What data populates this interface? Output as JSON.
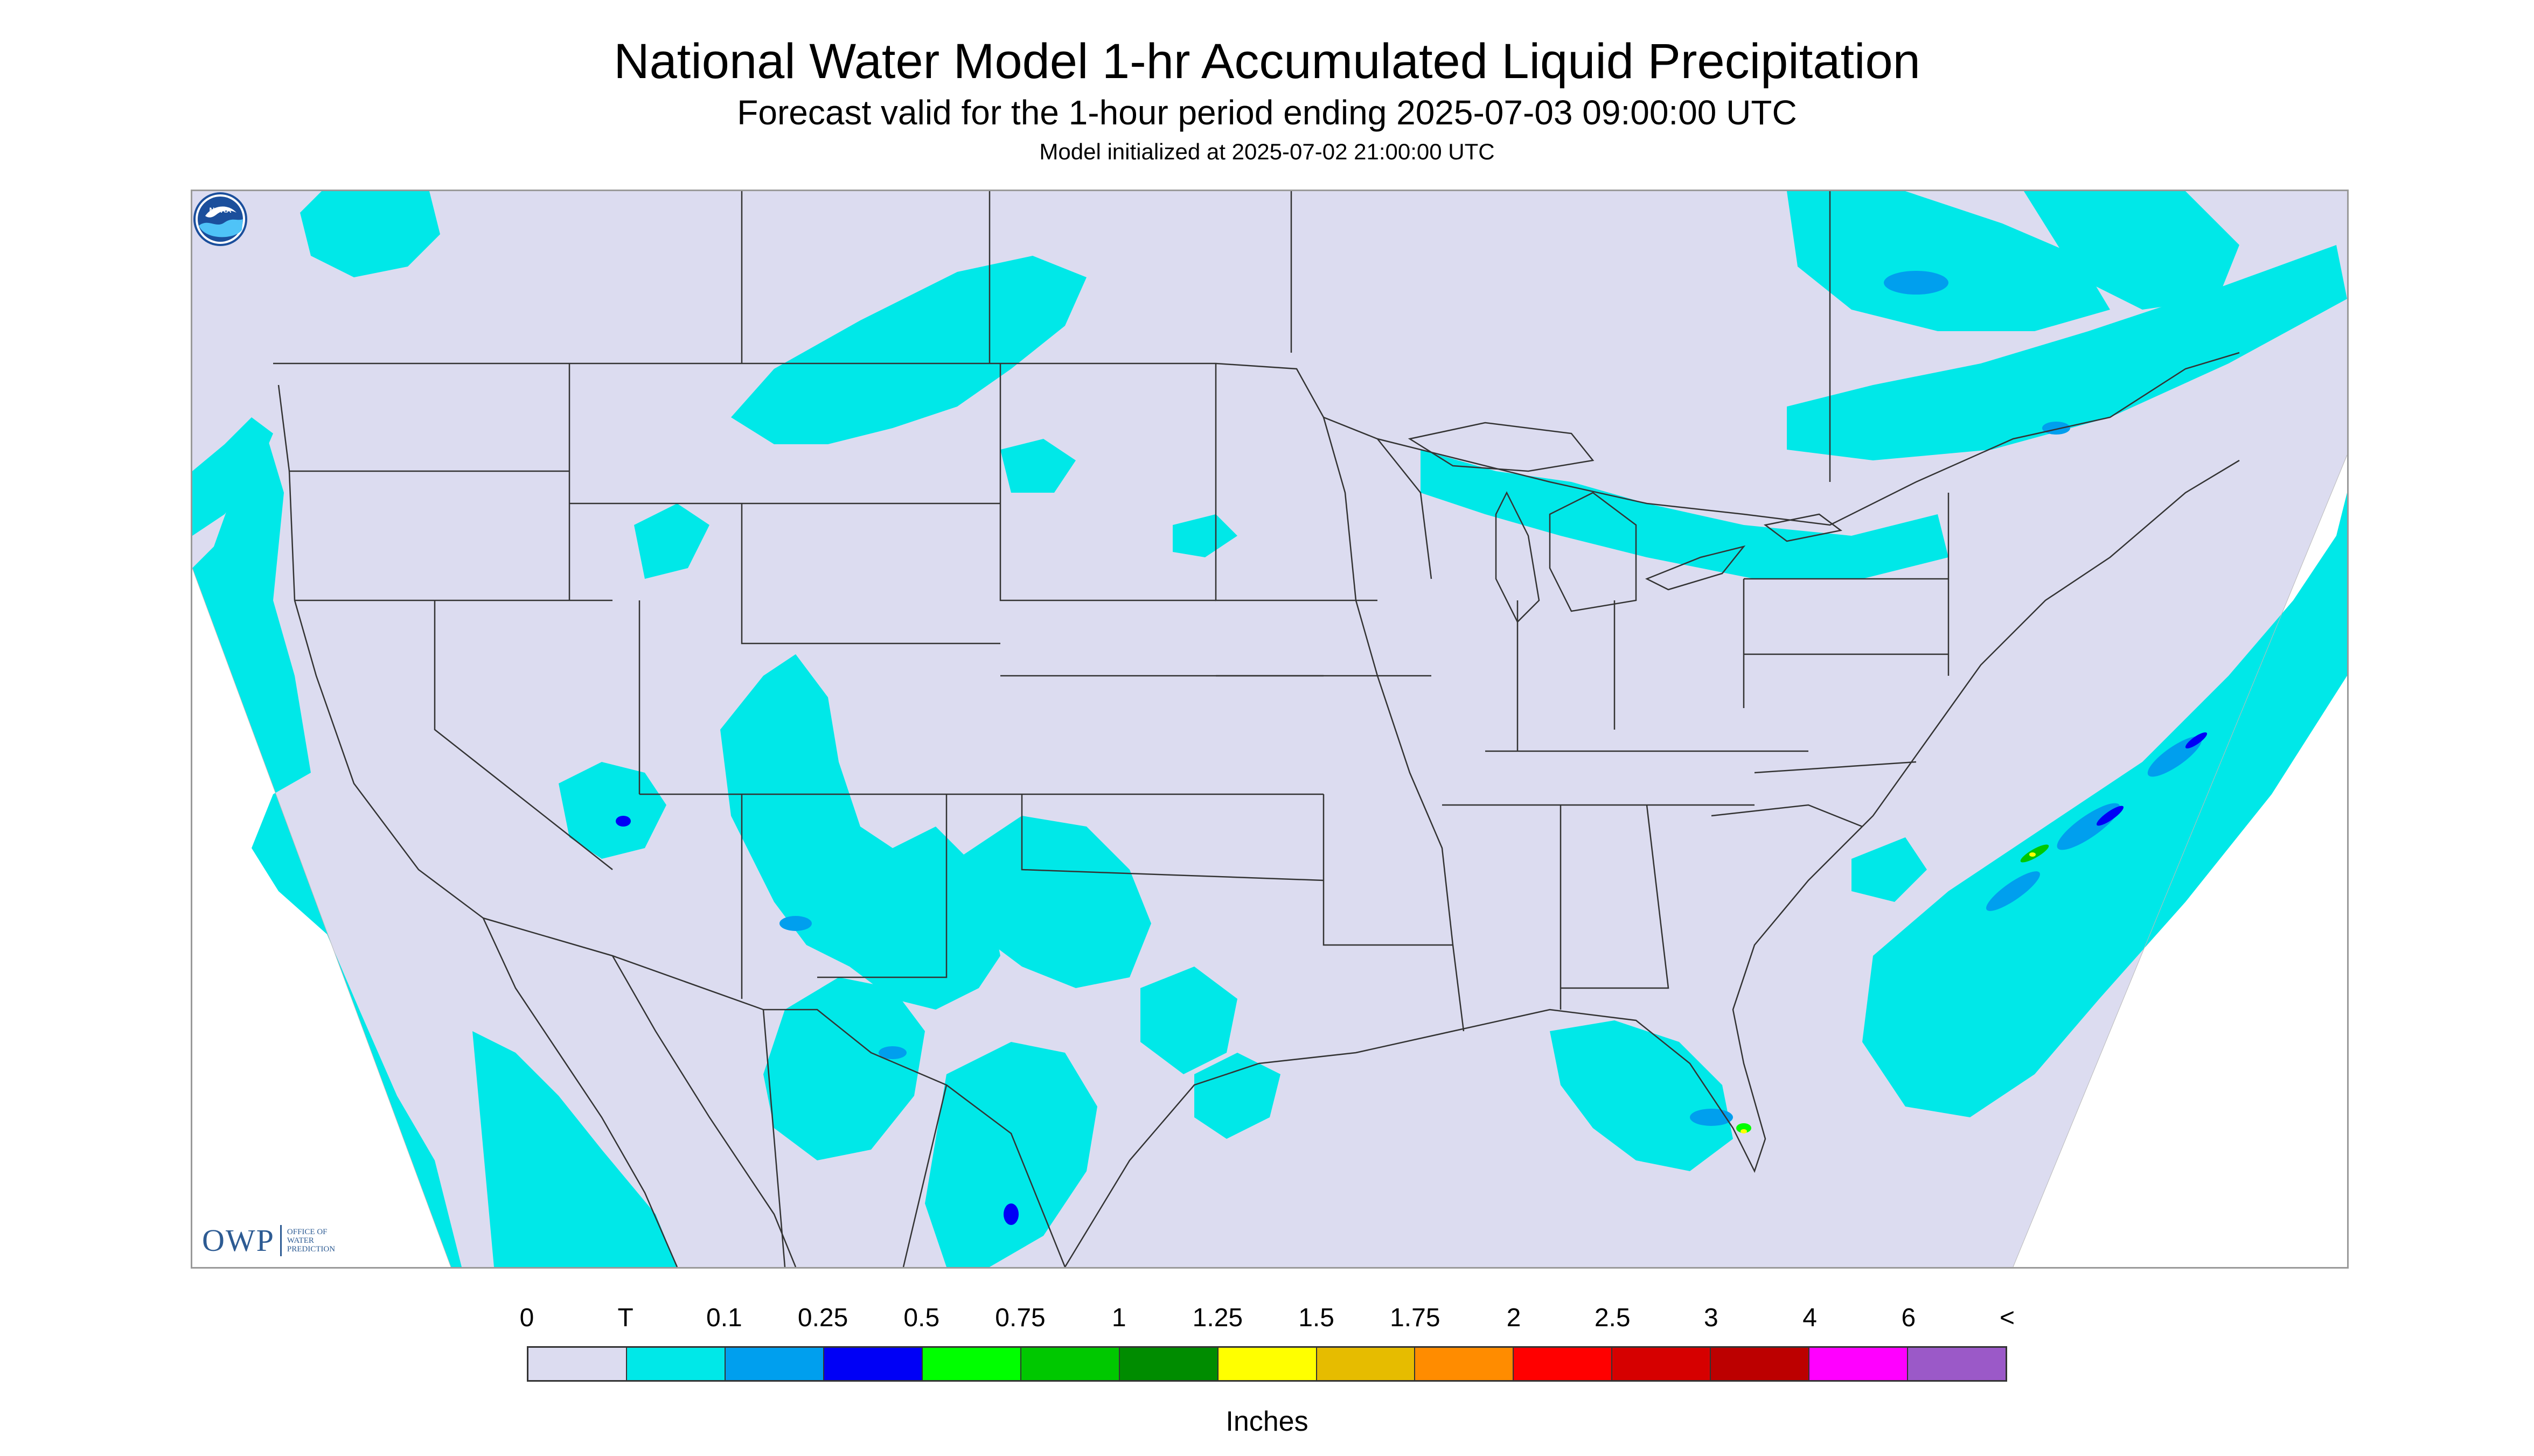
{
  "title": "National Water Model 1-hr Accumulated Liquid Precipitation",
  "subtitle": "Forecast valid for the 1-hour period ending 2025-07-03 09:00:00 UTC",
  "init_line": "Model initialized at 2025-07-02 21:00:00 UTC",
  "logos": {
    "owp_letters": "OWP",
    "owp_text": "OFFICE OF WATER PREDICTION",
    "noaa_text": "NOAA"
  },
  "colors": {
    "no_data": "#ffffff",
    "domain_fill": "#dcdcf0",
    "boundary_line": "#333333",
    "owp_blue": "#2d5b93"
  },
  "legend": {
    "units": "Inches",
    "tick_labels": [
      "0",
      "T",
      "0.1",
      "0.25",
      "0.5",
      "0.75",
      "1",
      "1.25",
      "1.5",
      "1.75",
      "2",
      "2.5",
      "3",
      "4",
      "6",
      "<"
    ],
    "bins": [
      {
        "color": "#dcdcf0"
      },
      {
        "color": "#00e8e8"
      },
      {
        "color": "#009fee"
      },
      {
        "color": "#0000f6"
      },
      {
        "color": "#00ff00"
      },
      {
        "color": "#00c800"
      },
      {
        "color": "#008c00"
      },
      {
        "color": "#ffff00"
      },
      {
        "color": "#e6bc00"
      },
      {
        "color": "#ff8c00"
      },
      {
        "color": "#ff0000"
      },
      {
        "color": "#d60000"
      },
      {
        "color": "#bc0000"
      },
      {
        "color": "#ff00ff"
      },
      {
        "color": "#9b59c8"
      }
    ]
  }
}
